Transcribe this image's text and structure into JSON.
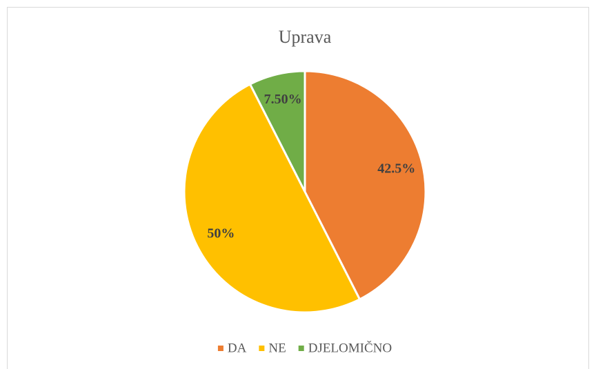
{
  "chart_data": {
    "type": "pie",
    "title": "Uprava",
    "categories": [
      "DA",
      "NE",
      "DJELOMIČNO"
    ],
    "values": [
      42.5,
      50,
      7.5
    ],
    "value_labels": [
      "42.5%",
      "50%",
      "7.50%"
    ],
    "colors": [
      "#ED7D31",
      "#FFC000",
      "#70AD47"
    ],
    "legend": "bottom"
  }
}
